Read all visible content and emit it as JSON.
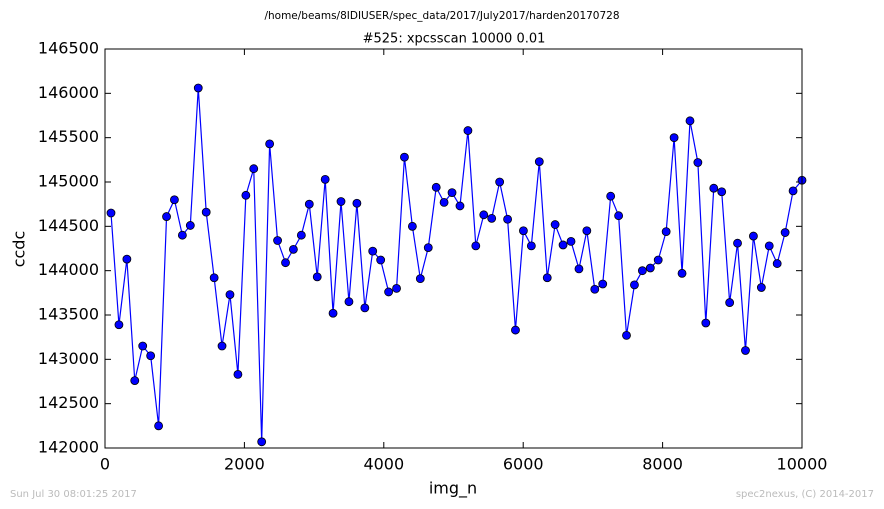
{
  "chart_data": {
    "type": "line",
    "supertitle": "/home/beams/8IDIUSER/spec_data/2017/July2017/harden20170728",
    "title": "#525: xpcsscan 10000 0.01",
    "x_label": "img_n",
    "y_label": "ccdc",
    "footer_left": "Sun Jul 30 08:01:25 2017",
    "footer_right": "spec2nexus, (C) 2014-2017",
    "color": "#0000ff",
    "marker": true,
    "x": [
      86,
      200,
      314,
      427,
      541,
      655,
      769,
      883,
      996,
      1110,
      1224,
      1338,
      1452,
      1566,
      1679,
      1793,
      1907,
      2021,
      2134,
      2248,
      2362,
      2476,
      2590,
      2703,
      2817,
      2931,
      3045,
      3159,
      3272,
      3386,
      3500,
      3614,
      3728,
      3841,
      3955,
      4069,
      4183,
      4296,
      4410,
      4524,
      4638,
      4752,
      4865,
      4979,
      5093,
      5207,
      5320,
      5434,
      5548,
      5662,
      5776,
      5889,
      6003,
      6117,
      6231,
      6345,
      6458,
      6572,
      6686,
      6800,
      6913,
      7027,
      7141,
      7255,
      7369,
      7482,
      7596,
      7710,
      7824,
      7937,
      8051,
      8165,
      8279,
      8393,
      8506,
      8620,
      8734,
      8848,
      8962,
      9075,
      9189,
      9303,
      9417,
      9530,
      9644,
      9758,
      9872,
      10000
    ],
    "values": [
      144650,
      143390,
      144130,
      142760,
      143150,
      143040,
      142250,
      144610,
      144800,
      144400,
      144510,
      146060,
      144660,
      143920,
      143150,
      143730,
      142830,
      144850,
      145150,
      142070,
      145430,
      144340,
      144090,
      144240,
      144400,
      144750,
      143930,
      145030,
      143520,
      144780,
      143650,
      144760,
      143580,
      144220,
      144120,
      143760,
      143800,
      145280,
      144500,
      143910,
      144260,
      144940,
      144770,
      144880,
      144730,
      145580,
      144280,
      144630,
      144590,
      145000,
      144580,
      143330,
      144450,
      144280,
      145230,
      143920,
      144520,
      144290,
      144330,
      144020,
      144450,
      143790,
      143850,
      144840,
      144620,
      143270,
      143840,
      144000,
      144030,
      144120,
      144440,
      145500,
      143970,
      145690,
      145220,
      143410,
      144930,
      144890,
      143640,
      144310,
      143100,
      144390,
      143810,
      144280,
      144080,
      144430,
      144900,
      145020
    ],
    "xlim": [
      0,
      10000
    ],
    "xticks": [
      0,
      2000,
      4000,
      6000,
      8000,
      10000
    ],
    "ylim": [
      142000,
      146500
    ],
    "yticks": [
      142000,
      142500,
      143000,
      143500,
      144000,
      144500,
      145000,
      145500,
      146000,
      146500
    ]
  }
}
